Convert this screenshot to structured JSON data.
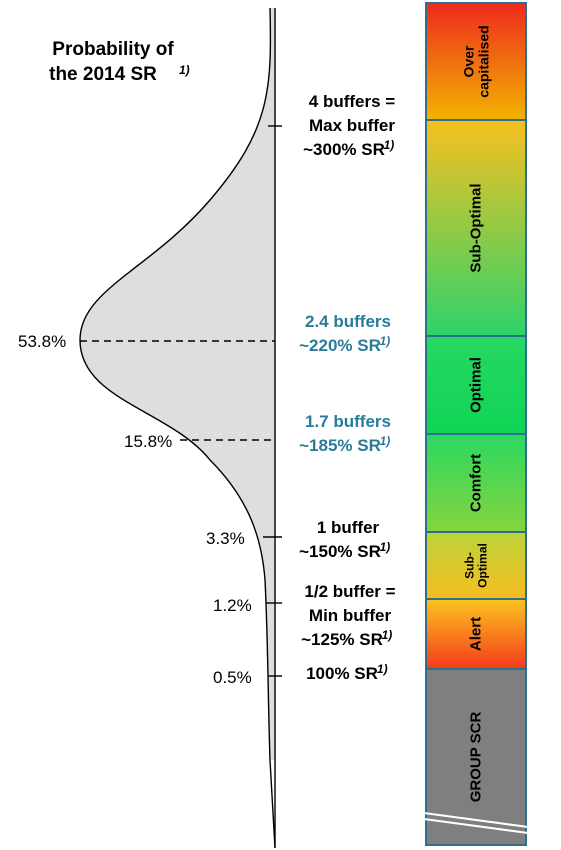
{
  "title": {
    "line1": "Probability of",
    "line2": "the 2014 SR",
    "sup": "1)"
  },
  "probabilities": [
    "53.8%",
    "15.8%",
    "3.3%",
    "1.2%",
    "0.5%"
  ],
  "levels": [
    {
      "lines": [
        "4 buffers =",
        "Max buffer",
        "~300% SR"
      ],
      "sup": "1)",
      "color": "#000000"
    },
    {
      "lines": [
        "2.4 buffers",
        "~220% SR"
      ],
      "sup": "1)",
      "color": "#2a7a9a"
    },
    {
      "lines": [
        "1.7 buffers",
        "~185% SR"
      ],
      "sup": "1)",
      "color": "#2a7a9a"
    },
    {
      "lines": [
        "1 buffer",
        "~150% SR"
      ],
      "sup": "1)",
      "color": "#000000"
    },
    {
      "lines": [
        "1/2 buffer =",
        "Min buffer",
        "~125% SR"
      ],
      "sup": "1)",
      "color": "#000000"
    },
    {
      "lines": [
        "100% SR"
      ],
      "sup": "1)",
      "color": "#000000"
    }
  ],
  "zones": [
    {
      "lines": [
        "Over",
        "capitalised"
      ],
      "gradient": [
        "#f2b400",
        "#ee2a1e"
      ]
    },
    {
      "lines": [
        "Sub-Optimal"
      ],
      "gradient": [
        "#2ed36a",
        "#f7c020"
      ]
    },
    {
      "lines": [
        "Optimal"
      ],
      "gradient": [
        "#10d454",
        "#26d862"
      ]
    },
    {
      "lines": [
        "Comfort"
      ],
      "gradient": [
        "#86d43e",
        "#2ad860"
      ]
    },
    {
      "lines": [
        "Sub-",
        "Optimal"
      ],
      "gradient": [
        "#f6bd21",
        "#bcd43a"
      ]
    },
    {
      "lines": [
        "Alert"
      ],
      "gradient": [
        "#f43a1c",
        "#fbc51e"
      ]
    },
    {
      "lines": [
        "GROUP SCR"
      ],
      "gradient": [
        "#7f7f7f",
        "#7f7f7f"
      ]
    }
  ],
  "colors": {
    "zone_border": "#2e6e8e",
    "curve_fill": "#dedede"
  }
}
